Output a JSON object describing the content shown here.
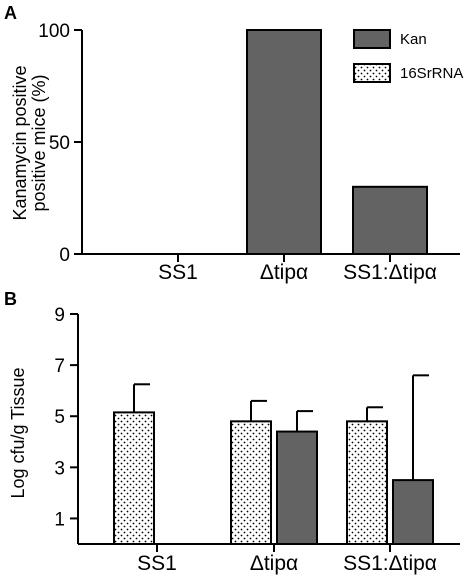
{
  "chart_data": [
    {
      "panel": "A",
      "type": "bar",
      "ylabel_line1": "Kanamycin positive",
      "ylabel_line2": "positive mice (%)",
      "categories": [
        "SS1",
        "Δtipα",
        "SS1:Δtipα"
      ],
      "ylim": [
        0,
        100
      ],
      "yticks": [
        0,
        50,
        100
      ],
      "series": [
        {
          "name": "Kan",
          "values": [
            0,
            100,
            30
          ],
          "color": "#636363"
        }
      ],
      "legend": {
        "placement": "top-right",
        "entries": [
          {
            "label": "Kan",
            "fill": "solid",
            "color": "#636363"
          },
          {
            "label": "16SrRNA",
            "fill": "dotted",
            "color": "#ffffff"
          }
        ]
      },
      "grid": false
    },
    {
      "panel": "B",
      "type": "bar",
      "ylabel": "Log cfu/g Tissue",
      "categories": [
        "SS1",
        "Δtipα",
        "SS1:Δtipα"
      ],
      "ylim": [
        0,
        9
      ],
      "yticks": [
        1,
        3,
        5,
        7,
        9
      ],
      "series": [
        {
          "name": "16SrRNA",
          "values": [
            5.15,
            4.8,
            4.8
          ],
          "errors": [
            1.1,
            0.8,
            0.55
          ],
          "fill": "dotted"
        },
        {
          "name": "Kan",
          "values": [
            null,
            4.4,
            2.5
          ],
          "errors": [
            null,
            0.8,
            4.1
          ],
          "fill": "solid",
          "color": "#636363"
        }
      ],
      "grid": false
    }
  ]
}
